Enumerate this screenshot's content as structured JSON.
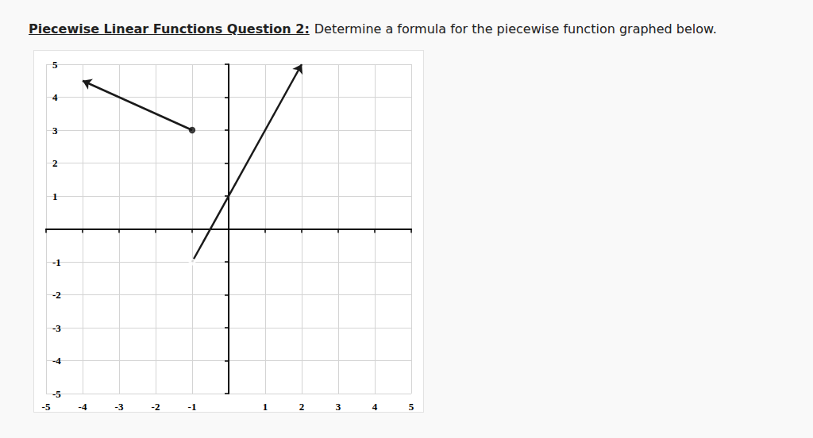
{
  "chart_data": {
    "type": "line",
    "title": "Piecewise Linear Functions Question 2:",
    "subtitle": "Determine a formula for the piecewise function graphed below.",
    "series": [
      {
        "x": [
          -1,
          -4
        ],
        "values": [
          3,
          4.5
        ],
        "color": "#1a1a1a",
        "marker": "filled"
      },
      {
        "x": [
          -1,
          2
        ],
        "values": [
          -1,
          5
        ],
        "color": "#1a1a1a",
        "marker": "open"
      }
    ],
    "xlim": [
      -5,
      5
    ],
    "xticks": [
      -5,
      -4,
      -3,
      -2,
      -1,
      1,
      2,
      3,
      4,
      5
    ],
    "ylim": [
      -5,
      5
    ],
    "yticks": [
      -5,
      -4,
      -3,
      -2,
      -1,
      1,
      2,
      3,
      4,
      5
    ],
    "grid": true
  }
}
